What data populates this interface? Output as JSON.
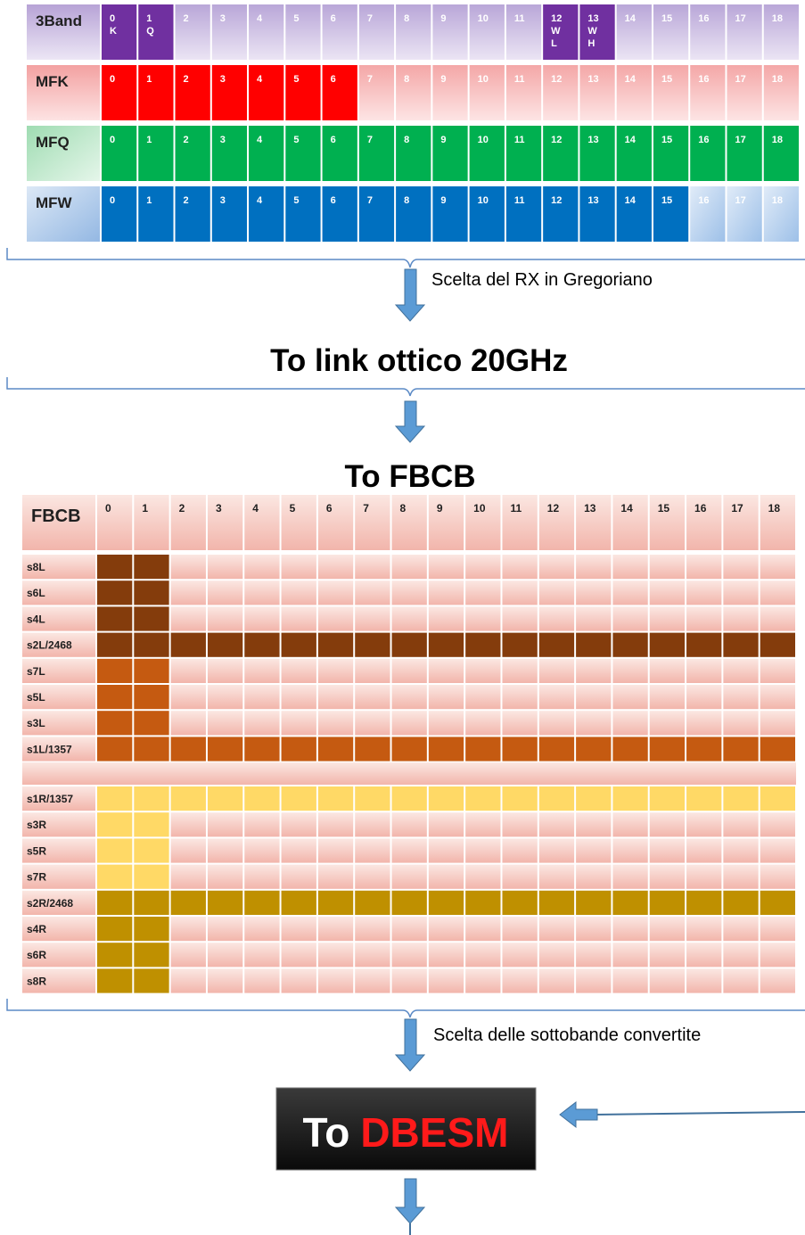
{
  "top_table": {
    "rows": [
      {
        "label": "3Band",
        "cells": [
          [
            "0",
            "K"
          ],
          [
            "1",
            "Q"
          ],
          [
            "2"
          ],
          [
            "3"
          ],
          [
            "4"
          ],
          [
            "5"
          ],
          [
            "6"
          ],
          [
            "7"
          ],
          [
            "8"
          ],
          [
            "9"
          ],
          [
            "10"
          ],
          [
            "11"
          ],
          [
            "12",
            "W",
            "L"
          ],
          [
            "13",
            "W",
            "H"
          ],
          [
            "14"
          ],
          [
            "15"
          ],
          [
            "16"
          ],
          [
            "17"
          ],
          [
            "18"
          ]
        ]
      },
      {
        "label": "MFK",
        "cells": [
          "0",
          "1",
          "2",
          "3",
          "4",
          "5",
          "6",
          "7",
          "8",
          "9",
          "10",
          "11",
          "12",
          "13",
          "14",
          "15",
          "16",
          "17",
          "18"
        ]
      },
      {
        "label": "MFQ",
        "cells": [
          "0",
          "1",
          "2",
          "3",
          "4",
          "5",
          "6",
          "7",
          "8",
          "9",
          "10",
          "11",
          "12",
          "13",
          "14",
          "15",
          "16",
          "17",
          "18"
        ]
      },
      {
        "label": "MFW",
        "cells": [
          "0",
          "1",
          "2",
          "3",
          "4",
          "5",
          "6",
          "7",
          "8",
          "9",
          "10",
          "11",
          "12",
          "13",
          "14",
          "15",
          "16",
          "17",
          "18"
        ]
      }
    ]
  },
  "arrow_1_label": "Scelta del RX in Gregoriano",
  "stage_1": "To link ottico 20GHz",
  "stage_2": "To FBCB",
  "fbcb_table": {
    "corner": "FBCB",
    "columns": [
      "0",
      "1",
      "2",
      "3",
      "4",
      "5",
      "6",
      "7",
      "8",
      "9",
      "10",
      "11",
      "12",
      "13",
      "14",
      "15",
      "16",
      "17",
      "18"
    ],
    "rows": [
      "s8L",
      "s6L",
      "s4L",
      "s2L/2468",
      "s7L",
      "s5L",
      "s3L",
      "s1L/1357",
      "s1R/1357",
      "s3R",
      "s5R",
      "s7R",
      "s2R/2468",
      "s4R",
      "s6R",
      "s8R"
    ]
  },
  "arrow_2_label": "Scelta delle sottobande convertite",
  "final": {
    "prefix": "To",
    "name": "DBESM"
  }
}
